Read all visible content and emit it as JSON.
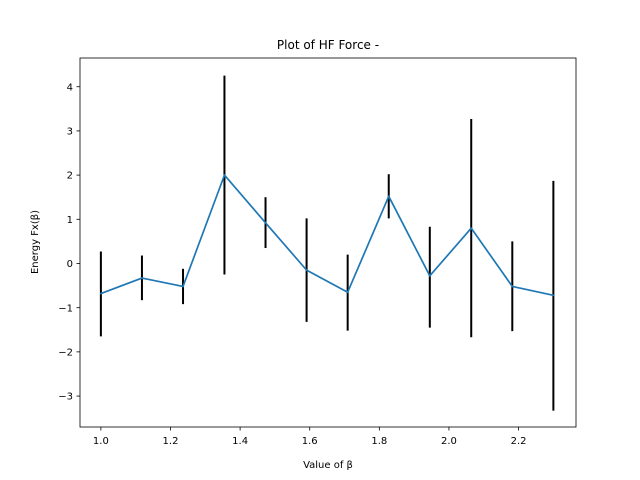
{
  "chart_data": {
    "type": "line",
    "title": "Plot of HF Force -",
    "xlabel": "Value of β",
    "ylabel": "Energy Fx(β)",
    "xlim": [
      0.94,
      2.365
    ],
    "ylim": [
      -3.7,
      4.65
    ],
    "xticks": [
      1.0,
      1.2,
      1.4,
      1.6,
      1.8,
      2.0,
      2.2
    ],
    "xtick_labels": [
      "1.0",
      "1.2",
      "1.4",
      "1.6",
      "1.8",
      "2.0",
      "2.2"
    ],
    "yticks": [
      -3,
      -2,
      -1,
      0,
      1,
      2,
      3,
      4
    ],
    "ytick_labels": [
      "−3",
      "−2",
      "−1",
      "0",
      "1",
      "2",
      "3",
      "4"
    ],
    "grid": false,
    "series": [
      {
        "x": [
          1.0,
          1.118,
          1.236,
          1.355,
          1.473,
          1.591,
          1.709,
          1.827,
          1.945,
          2.064,
          2.182,
          2.3
        ],
        "y": [
          -0.68,
          -0.33,
          -0.52,
          2.0,
          0.92,
          -0.15,
          -0.65,
          1.52,
          -0.28,
          0.8,
          -0.52,
          -0.72
        ],
        "err_low": [
          -1.65,
          -0.83,
          -0.92,
          -0.25,
          0.35,
          -1.32,
          -1.52,
          1.02,
          -1.45,
          -1.67,
          -1.53,
          -3.33
        ],
        "err_high": [
          0.27,
          0.18,
          -0.12,
          4.25,
          1.5,
          1.02,
          0.2,
          2.02,
          0.83,
          3.27,
          0.5,
          1.87
        ],
        "color": "#1f77b4",
        "errorbar_color": "#000000"
      }
    ]
  }
}
